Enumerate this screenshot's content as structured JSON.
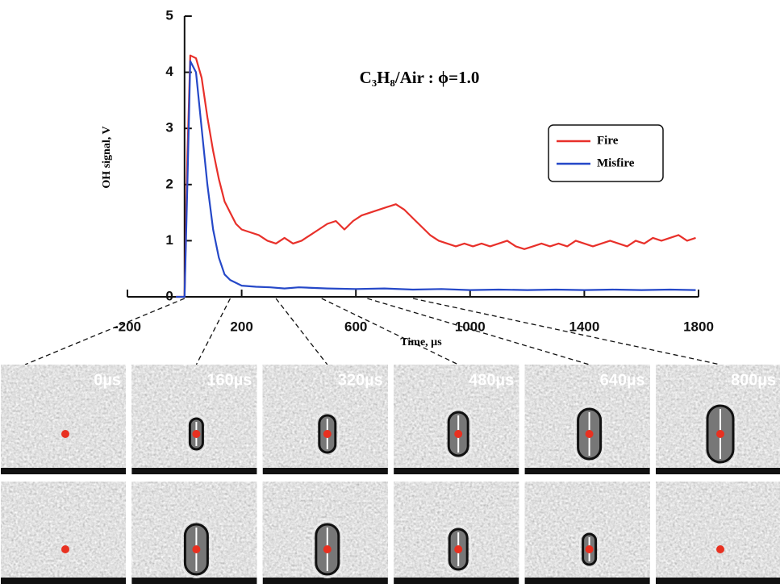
{
  "chart_data": {
    "type": "line",
    "title": "C₃H₈/Air : ϕ=1.0",
    "x_label": "Time, µs",
    "y_label": "OH signal, V",
    "xlim": [
      -200,
      1800
    ],
    "ylim": [
      0,
      5
    ],
    "xticks": [
      -200,
      200,
      600,
      1000,
      1400,
      1800
    ],
    "yticks": [
      0,
      1,
      2,
      3,
      4,
      5
    ],
    "legend": "upper right",
    "series": [
      {
        "name": "Fire",
        "color": "#e8302a",
        "x": [
          -30,
          0,
          10,
          20,
          40,
          60,
          80,
          100,
          120,
          140,
          160,
          180,
          200,
          230,
          260,
          290,
          320,
          350,
          380,
          410,
          440,
          470,
          500,
          530,
          560,
          590,
          620,
          650,
          680,
          710,
          740,
          770,
          800,
          830,
          860,
          890,
          920,
          950,
          980,
          1010,
          1040,
          1070,
          1100,
          1130,
          1160,
          1190,
          1220,
          1250,
          1280,
          1310,
          1340,
          1370,
          1400,
          1430,
          1460,
          1490,
          1520,
          1550,
          1580,
          1610,
          1640,
          1670,
          1700,
          1730,
          1760,
          1790
        ],
        "values": [
          0,
          0,
          2.5,
          4.3,
          4.25,
          3.9,
          3.2,
          2.6,
          2.1,
          1.7,
          1.5,
          1.3,
          1.2,
          1.15,
          1.1,
          1.0,
          0.95,
          1.05,
          0.95,
          1.0,
          1.1,
          1.2,
          1.3,
          1.35,
          1.2,
          1.35,
          1.45,
          1.5,
          1.55,
          1.6,
          1.65,
          1.55,
          1.4,
          1.25,
          1.1,
          1.0,
          0.95,
          0.9,
          0.95,
          0.9,
          0.95,
          0.9,
          0.95,
          1.0,
          0.9,
          0.85,
          0.9,
          0.95,
          0.9,
          0.95,
          0.9,
          1.0,
          0.95,
          0.9,
          0.95,
          1.0,
          0.95,
          0.9,
          1.0,
          0.95,
          1.05,
          1.0,
          1.05,
          1.1,
          1.0,
          1.05
        ]
      },
      {
        "name": "Misfire",
        "color": "#2548c8",
        "x": [
          -30,
          0,
          10,
          20,
          40,
          60,
          80,
          100,
          120,
          140,
          160,
          180,
          200,
          250,
          300,
          350,
          400,
          500,
          600,
          700,
          800,
          900,
          1000,
          1100,
          1200,
          1300,
          1400,
          1500,
          1600,
          1700,
          1790
        ],
        "values": [
          0,
          0,
          2.0,
          4.2,
          4.0,
          3.0,
          2.0,
          1.2,
          0.7,
          0.4,
          0.3,
          0.25,
          0.2,
          0.18,
          0.17,
          0.15,
          0.17,
          0.15,
          0.14,
          0.15,
          0.13,
          0.14,
          0.12,
          0.13,
          0.12,
          0.13,
          0.12,
          0.13,
          0.12,
          0.13,
          0.12
        ]
      }
    ]
  },
  "frames": [
    {
      "value": 0,
      "label": "0µs"
    },
    {
      "value": 160,
      "label": "160µs"
    },
    {
      "value": 320,
      "label": "320µs"
    },
    {
      "value": 480,
      "label": "480µs"
    },
    {
      "value": 640,
      "label": "640µs"
    },
    {
      "value": 800,
      "label": "800µs"
    }
  ]
}
